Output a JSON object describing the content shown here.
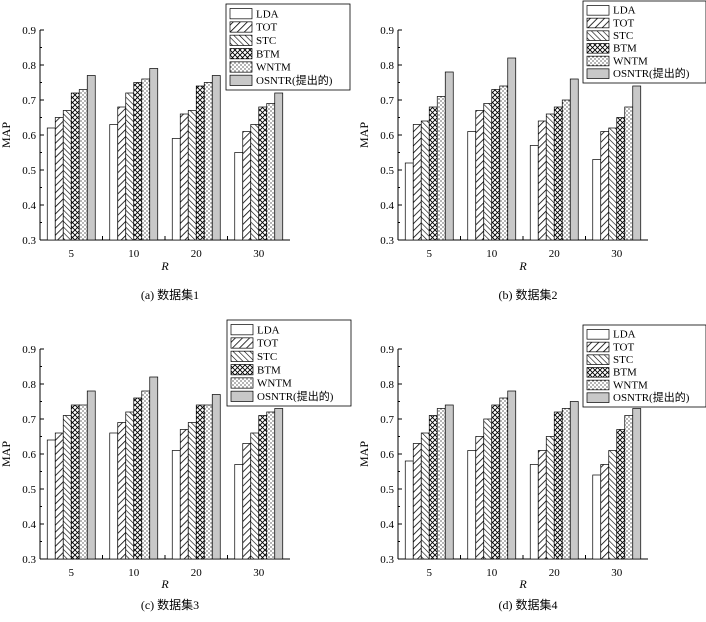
{
  "chart_data": [
    {
      "type": "bar",
      "caption": "(a) 数据集1",
      "xlabel": "R",
      "ylabel": "MAP",
      "ylim": [
        0.3,
        0.9
      ],
      "yticks": [
        "0.3",
        "0.4",
        "0.5",
        "0.6",
        "0.7",
        "0.8",
        "0.9"
      ],
      "categories": [
        "5",
        "10",
        "20",
        "30"
      ],
      "legend_position": "top-right",
      "series": [
        {
          "name": "LDA",
          "values": [
            0.62,
            0.63,
            0.59,
            0.55
          ]
        },
        {
          "name": "TOT",
          "values": [
            0.65,
            0.68,
            0.66,
            0.61
          ]
        },
        {
          "name": "STC",
          "values": [
            0.67,
            0.72,
            0.67,
            0.63
          ]
        },
        {
          "name": "BTM",
          "values": [
            0.72,
            0.75,
            0.74,
            0.68
          ]
        },
        {
          "name": "WNTM",
          "values": [
            0.73,
            0.76,
            0.75,
            0.69
          ]
        },
        {
          "name": "OSNTR(提出的)",
          "values": [
            0.77,
            0.79,
            0.77,
            0.72
          ]
        }
      ]
    },
    {
      "type": "bar",
      "caption": "(b) 数据集2",
      "xlabel": "R",
      "ylabel": "MAP",
      "ylim": [
        0.3,
        0.9
      ],
      "yticks": [
        "0.3",
        "0.4",
        "0.5",
        "0.6",
        "0.7",
        "0.8",
        "0.9"
      ],
      "categories": [
        "5",
        "10",
        "20",
        "30"
      ],
      "legend_position": "top-right",
      "series": [
        {
          "name": "LDA",
          "values": [
            0.52,
            0.61,
            0.57,
            0.53
          ]
        },
        {
          "name": "TOT",
          "values": [
            0.63,
            0.67,
            0.64,
            0.61
          ]
        },
        {
          "name": "STC",
          "values": [
            0.64,
            0.69,
            0.66,
            0.62
          ]
        },
        {
          "name": "BTM",
          "values": [
            0.68,
            0.73,
            0.68,
            0.65
          ]
        },
        {
          "name": "WNTM",
          "values": [
            0.71,
            0.74,
            0.7,
            0.68
          ]
        },
        {
          "name": "OSNTR(提出的)",
          "values": [
            0.78,
            0.82,
            0.76,
            0.74
          ]
        }
      ]
    },
    {
      "type": "bar",
      "caption": "(c) 数据集3",
      "xlabel": "R",
      "ylabel": "MAP",
      "ylim": [
        0.3,
        0.9
      ],
      "yticks": [
        "0.3",
        "0.4",
        "0.5",
        "0.6",
        "0.7",
        "0.8",
        "0.9"
      ],
      "categories": [
        "5",
        "10",
        "20",
        "30"
      ],
      "legend_position": "top-right",
      "series": [
        {
          "name": "LDA",
          "values": [
            0.64,
            0.66,
            0.61,
            0.57
          ]
        },
        {
          "name": "TOT",
          "values": [
            0.66,
            0.69,
            0.67,
            0.63
          ]
        },
        {
          "name": "STC",
          "values": [
            0.71,
            0.72,
            0.69,
            0.66
          ]
        },
        {
          "name": "BTM",
          "values": [
            0.74,
            0.76,
            0.74,
            0.71
          ]
        },
        {
          "name": "WNTM",
          "values": [
            0.74,
            0.78,
            0.74,
            0.72
          ]
        },
        {
          "name": "OSNTR(提出的)",
          "values": [
            0.78,
            0.82,
            0.77,
            0.73
          ]
        }
      ]
    },
    {
      "type": "bar",
      "caption": "(d) 数据集4",
      "xlabel": "R",
      "ylabel": "MAP",
      "ylim": [
        0.3,
        0.9
      ],
      "yticks": [
        "0.3",
        "0.4",
        "0.5",
        "0.6",
        "0.7",
        "0.8",
        "0.9"
      ],
      "categories": [
        "5",
        "10",
        "20",
        "30"
      ],
      "legend_position": "top-right",
      "series": [
        {
          "name": "LDA",
          "values": [
            0.58,
            0.61,
            0.57,
            0.54
          ]
        },
        {
          "name": "TOT",
          "values": [
            0.63,
            0.65,
            0.61,
            0.57
          ]
        },
        {
          "name": "STC",
          "values": [
            0.66,
            0.7,
            0.65,
            0.61
          ]
        },
        {
          "name": "BTM",
          "values": [
            0.71,
            0.74,
            0.72,
            0.67
          ]
        },
        {
          "name": "WNTM",
          "values": [
            0.73,
            0.76,
            0.73,
            0.71
          ]
        },
        {
          "name": "OSNTR(提出的)",
          "values": [
            0.74,
            0.78,
            0.75,
            0.73
          ]
        }
      ]
    }
  ]
}
